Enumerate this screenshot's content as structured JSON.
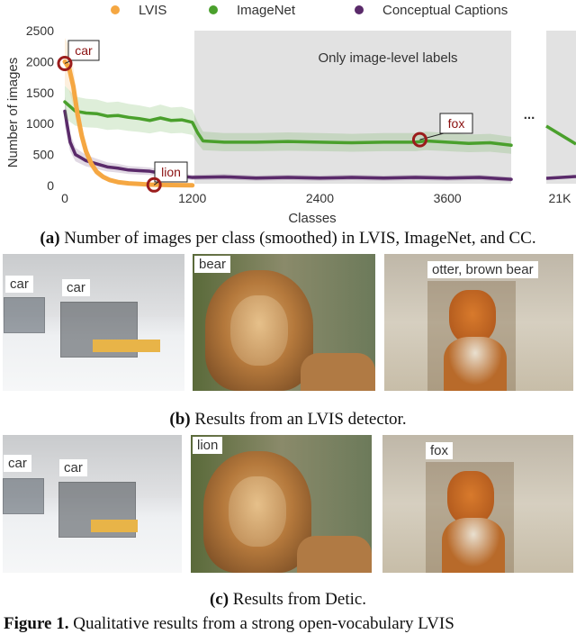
{
  "chart_data": {
    "type": "line",
    "title": "",
    "xlabel": "Classes",
    "ylabel": "Number of images",
    "ylim": [
      0,
      2500
    ],
    "yticks": [
      "0",
      "500",
      "1000",
      "1500",
      "2000",
      "2500"
    ],
    "xticks": [
      "0",
      "1200",
      "2400",
      "3600",
      "21K"
    ],
    "legend_position": "top",
    "series": [
      {
        "name": "LVIS",
        "color": "#f5a742",
        "x": [
          0,
          40,
          80,
          120,
          160,
          200,
          250,
          300,
          360,
          420,
          500,
          600,
          700,
          800,
          900,
          1000,
          1100,
          1200
        ],
        "y": [
          2000,
          1900,
          1600,
          1150,
          800,
          550,
          350,
          220,
          140,
          90,
          55,
          35,
          25,
          15,
          10,
          8,
          5,
          3
        ]
      },
      {
        "name": "ImageNet",
        "color": "#4aa02c",
        "x": [
          0,
          100,
          200,
          300,
          400,
          500,
          600,
          700,
          800,
          900,
          1000,
          1100,
          1200,
          1250,
          1300,
          1500,
          1800,
          2100,
          2400,
          2700,
          3000,
          3300,
          3400,
          3600,
          3800,
          4000,
          4200
        ],
        "y": [
          1350,
          1200,
          1170,
          1160,
          1120,
          1130,
          1100,
          1080,
          1050,
          1090,
          1050,
          1060,
          1020,
          850,
          720,
          700,
          700,
          710,
          700,
          690,
          700,
          700,
          720,
          700,
          680,
          690,
          650
        ]
      },
      {
        "name": "Conceptual Captions",
        "color": "#5a2a6a",
        "x": [
          0,
          50,
          100,
          150,
          200,
          300,
          400,
          500,
          600,
          700,
          800,
          900,
          1000,
          1200,
          1500,
          1800,
          2100,
          2400,
          2700,
          3000,
          3300,
          3600,
          3900,
          4200
        ],
        "y": [
          1200,
          700,
          500,
          450,
          400,
          350,
          300,
          280,
          250,
          240,
          230,
          200,
          170,
          130,
          140,
          120,
          130,
          120,
          130,
          120,
          130,
          120,
          130,
          100
        ]
      }
    ],
    "annotations": [
      {
        "label": "car",
        "x": 0,
        "y": 1970
      },
      {
        "label": "lion",
        "x": 840,
        "y": 10
      },
      {
        "label": "fox",
        "x": 3340,
        "y": 740
      }
    ],
    "region_label": "Only image-level labels",
    "ellipsis": "..."
  },
  "figure": {
    "caption_a_tag": "(a)",
    "caption_a_text": " Number of images per class (smoothed) in LVIS, ImageNet, and CC.",
    "caption_b_tag": "(b)",
    "caption_b_text": " Results from an LVIS detector.",
    "caption_c_tag": "(c)",
    "caption_c_text": " Results from Detic.",
    "bottom_tag": "Figure 1.",
    "bottom_text": " Qualitative results from a strong open-vocabulary LVIS"
  },
  "panels_b": {
    "snow_labels": [
      "car",
      "car"
    ],
    "lion_label": "bear",
    "fox_label": "otter, brown bear"
  },
  "panels_c": {
    "snow_labels": [
      "car",
      "car"
    ],
    "lion_label": "lion",
    "fox_label": "fox"
  }
}
